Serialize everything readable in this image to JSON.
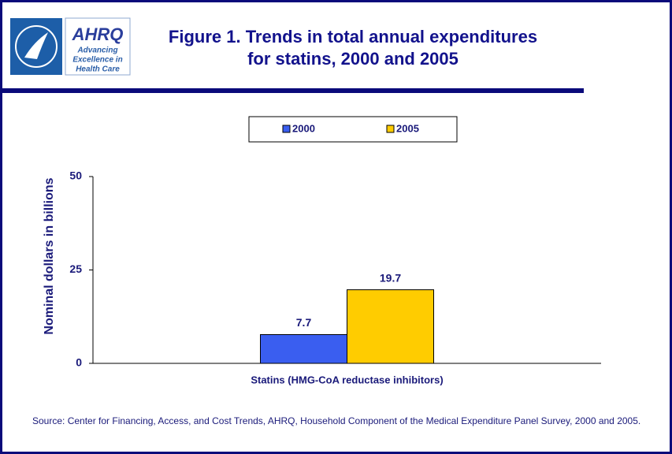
{
  "logo": {
    "name": "AHRQ",
    "tagline": [
      "Advancing",
      "Excellence in",
      "Health Care"
    ]
  },
  "chart_data": {
    "type": "bar",
    "title": "Figure 1. Trends in total annual expenditures for statins, 2000 and 2005",
    "y_label": "Nominal dollars in billions",
    "categories": [
      "Statins (HMG-CoA reductase inhibitors)"
    ],
    "series": [
      {
        "name": "2000",
        "color": "#3a5ef0",
        "values": [
          7.7
        ]
      },
      {
        "name": "2005",
        "color": "#ffcc00",
        "values": [
          19.7
        ]
      }
    ],
    "ylim": [
      0,
      50
    ],
    "yticks": [
      0,
      25,
      50
    ],
    "grid": false,
    "legend": "top",
    "source": "Source: Center for Financing, Access, and Cost Trends, AHRQ, Household Component of the Medical Expenditure Panel Survey, 2000 and 2005."
  }
}
